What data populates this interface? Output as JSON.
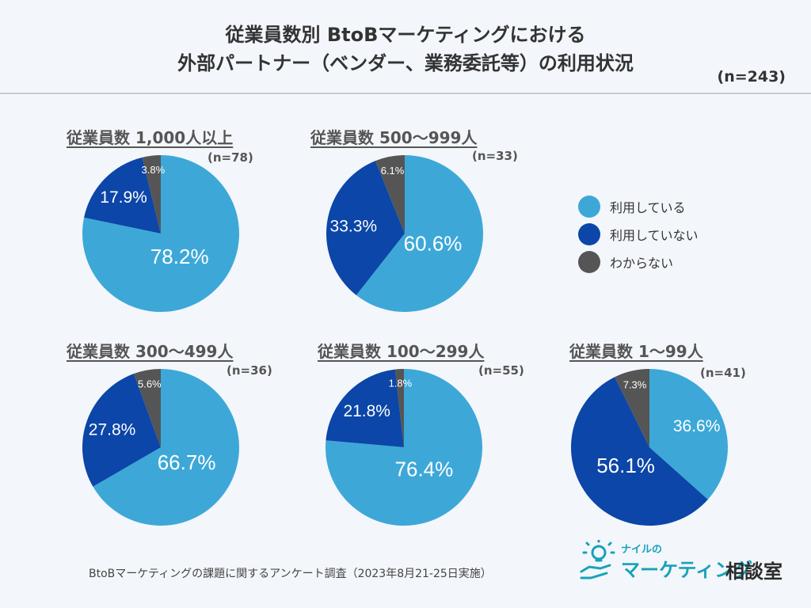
{
  "title": {
    "line1": "従業員数別 BtoBマーケティングにおける",
    "line2": "外部パートナー（ベンダー、業務委託等）の利用状況"
  },
  "total_n": "(n=243)",
  "colors": {
    "using": "#3da8d8",
    "not_using": "#0b46a8",
    "unknown": "#555555"
  },
  "legend": [
    {
      "label": "利用している",
      "color": "#3da8d8"
    },
    {
      "label": "利用していない",
      "color": "#0b46a8"
    },
    {
      "label": "わからない",
      "color": "#555555"
    }
  ],
  "chart_data": [
    {
      "type": "pie",
      "title": "従業員数 1,000人以上",
      "n": "(n=78)",
      "labels": [
        "利用している",
        "利用していない",
        "わからない"
      ],
      "values": [
        78.2,
        17.9,
        3.8
      ],
      "value_labels": [
        "78.2%",
        "17.9%",
        "3.8%"
      ]
    },
    {
      "type": "pie",
      "title": "従業員数 500〜999人",
      "n": "(n=33)",
      "labels": [
        "利用している",
        "利用していない",
        "わからない"
      ],
      "values": [
        60.6,
        33.3,
        6.1
      ],
      "value_labels": [
        "60.6%",
        "33.3%",
        "6.1%"
      ]
    },
    {
      "type": "pie",
      "title": "従業員数 300〜499人",
      "n": "(n=36)",
      "labels": [
        "利用している",
        "利用していない",
        "わからない"
      ],
      "values": [
        66.7,
        27.8,
        5.6
      ],
      "value_labels": [
        "66.7%",
        "27.8%",
        "5.6%"
      ]
    },
    {
      "type": "pie",
      "title": "従業員数 100〜299人",
      "n": "(n=55)",
      "labels": [
        "利用している",
        "利用していない",
        "わからない"
      ],
      "values": [
        76.4,
        21.8,
        1.8
      ],
      "value_labels": [
        "76.4%",
        "21.8%",
        "1.8%"
      ]
    },
    {
      "type": "pie",
      "title": "従業員数 1〜99人",
      "n": "(n=41)",
      "labels": [
        "利用している",
        "利用していない",
        "わからない"
      ],
      "values": [
        36.6,
        56.1,
        7.3
      ],
      "value_labels": [
        "36.6%",
        "56.1%",
        "7.3%"
      ]
    }
  ],
  "source": "BtoBマーケティングの課題に関するアンケート調査（2023年8月21-25日実施）",
  "logo": {
    "sub": "ナイルの",
    "main": "マーケティング",
    "kanji": "相談室"
  }
}
